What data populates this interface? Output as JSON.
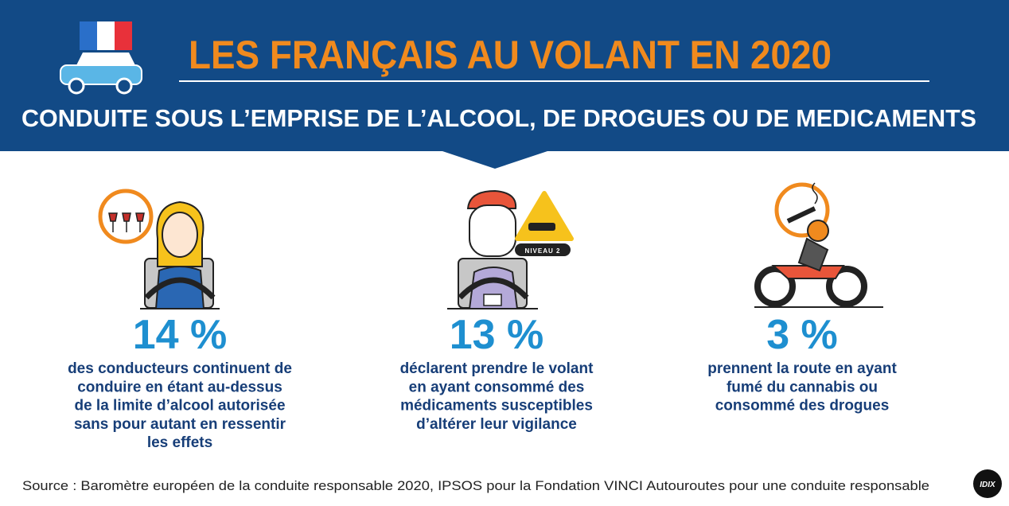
{
  "header": {
    "title": "LES FRANÇAIS AU VOLANT EN 2020",
    "subtitle": "CONDUITE SOUS L’EMPRISE DE L’ALCOOL, DE DROGUES OU DE MEDICAMENTS"
  },
  "stats": [
    {
      "value": "14 %",
      "lines": [
        "des conducteurs continuent de",
        "conduire en étant au-dessus",
        "de la limite d’alcool autorisée",
        "sans pour autant en ressentir",
        "les effets"
      ]
    },
    {
      "value": "13 %",
      "badge": "NIVEAU 2",
      "lines": [
        "déclarent prendre le volant",
        "en ayant consommé des",
        "médicaments susceptibles",
        "d’altérer leur vigilance"
      ]
    },
    {
      "value": "3 %",
      "lines": [
        "prennent la route en ayant",
        "fumé du cannabis ou",
        "consommé des drogues"
      ]
    }
  ],
  "source": "Source : Baromètre européen de la conduite responsable 2020, IPSOS pour la Fondation VINCI Autouroutes pour une conduite responsable",
  "logo": "IDIX"
}
